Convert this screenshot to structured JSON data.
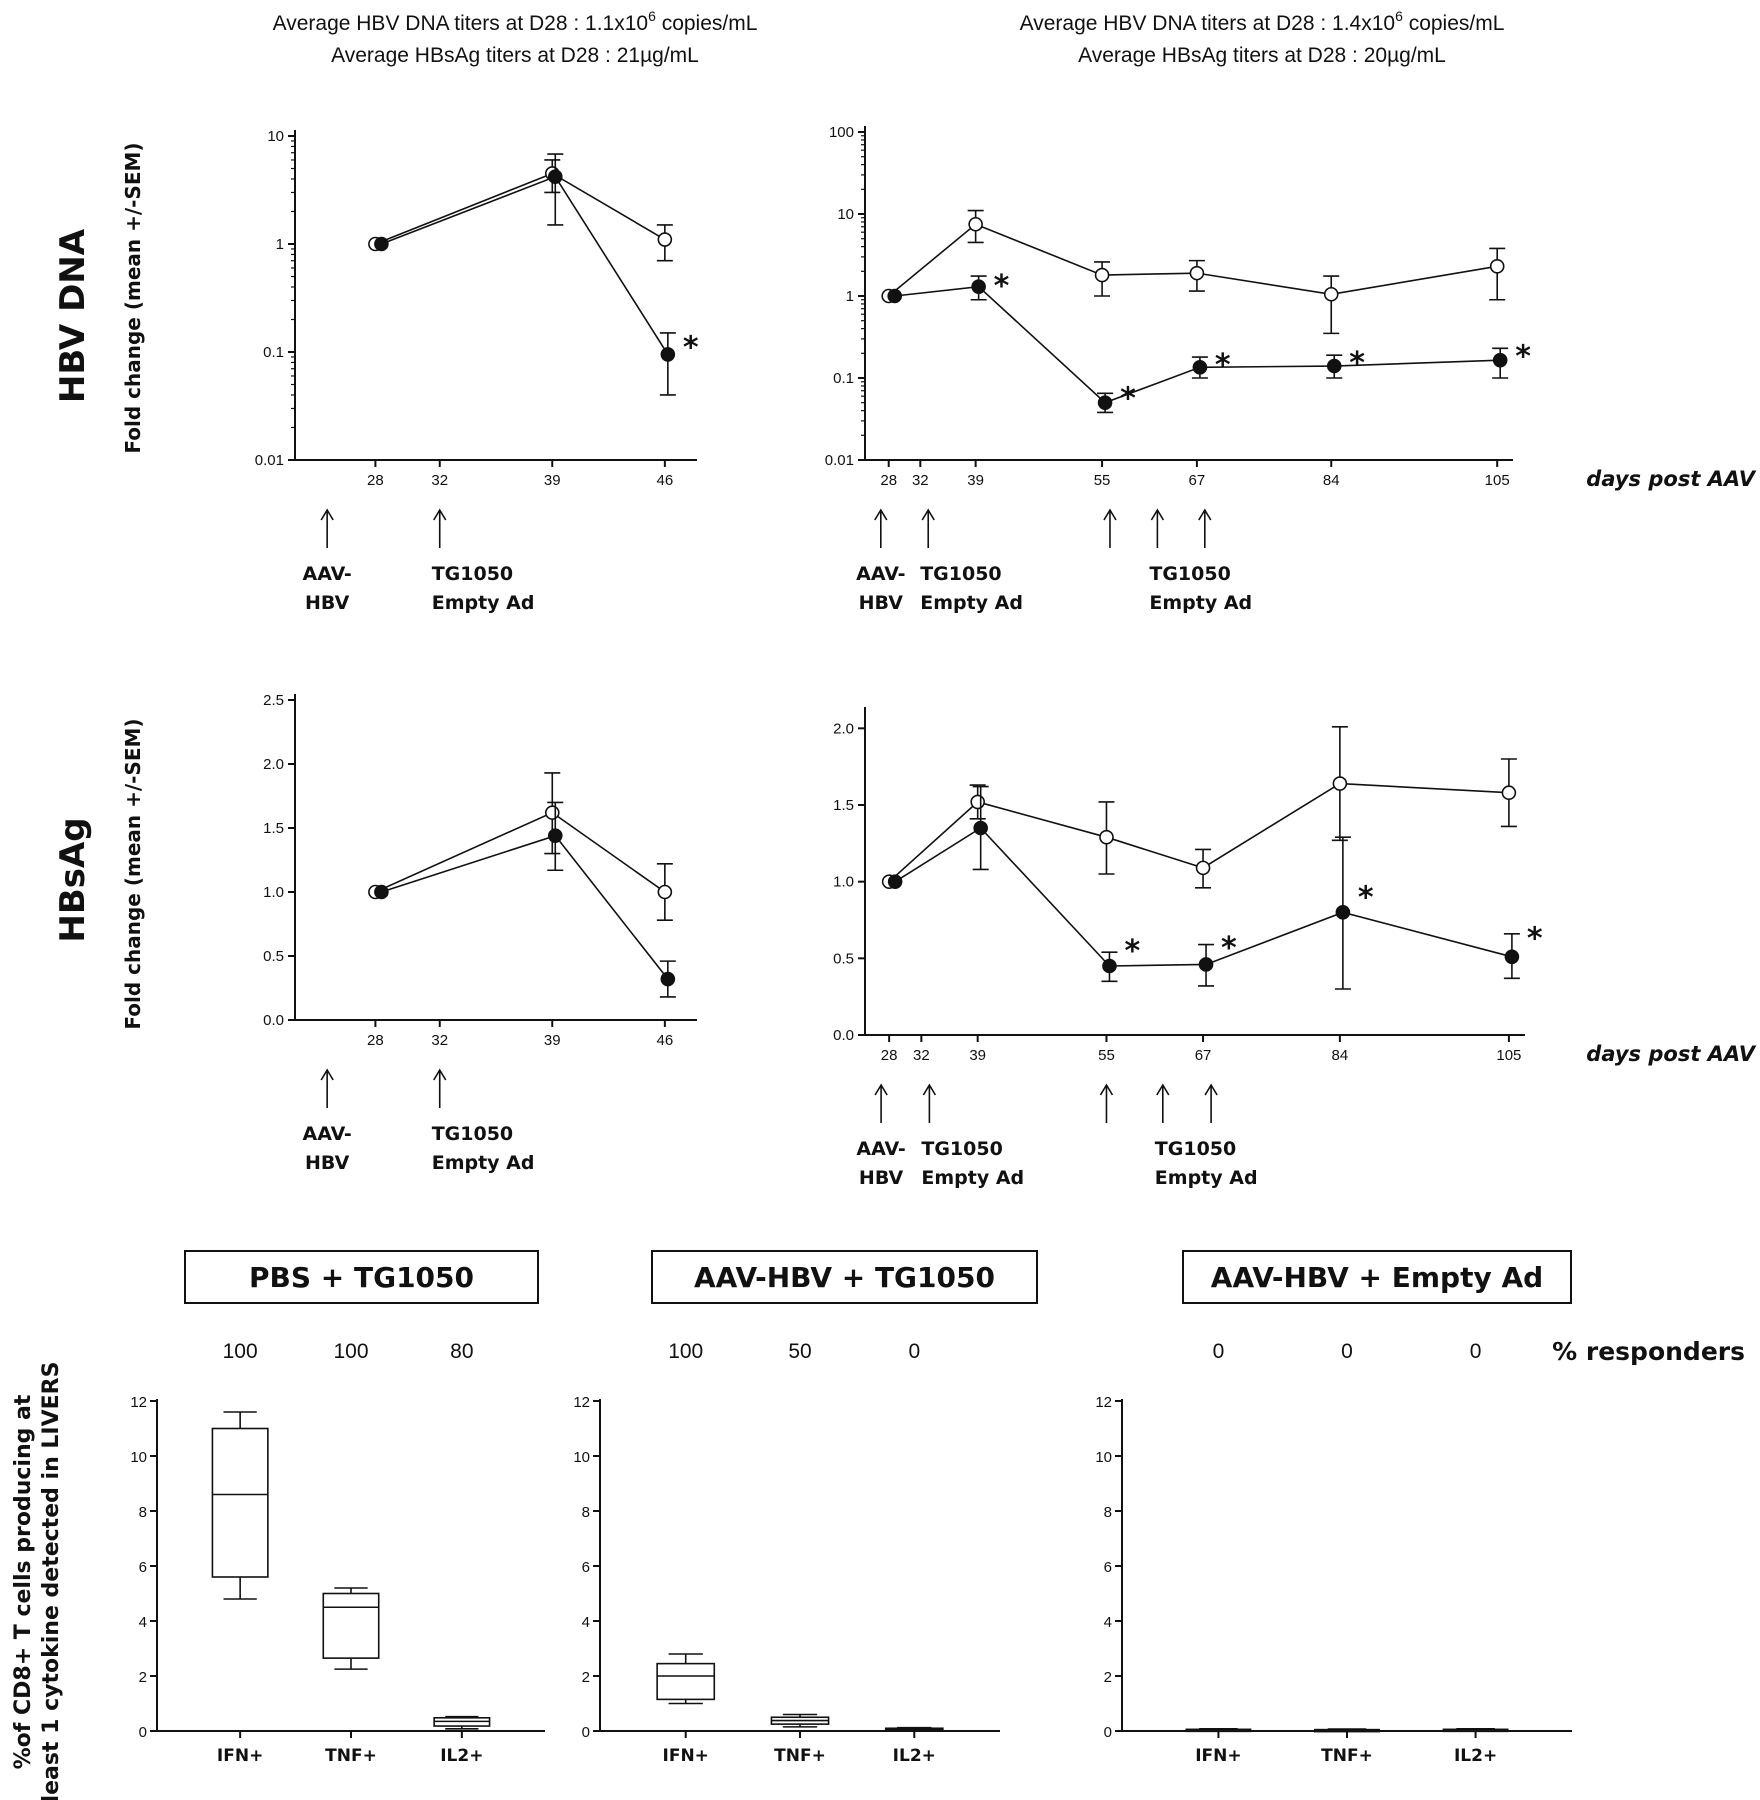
{
  "figure": {
    "headers": [
      {
        "line1": "Average HBV DNA titers at D28 : 1.1x10",
        "sup": "6",
        "tail": " copies/mL",
        "line2": "Average HBsAg titers at D28 : 21µg/mL"
      },
      {
        "line1": "Average HBV DNA titers at D28 : 1.4x10",
        "sup": "6",
        "tail": " copies/mL",
        "line2": "Average HBsAg titers at D28 : 20µg/mL"
      }
    ],
    "row_labels": [
      "HBV DNA",
      "HBsAg"
    ],
    "y_axis_label": "Fold change (mean +/-SEM)",
    "days_label": "days post AAV",
    "arrow_labels": {
      "aav_1": "AAV-",
      "aav_2": "HBV",
      "tg_1": "TG1050",
      "tg_2": "Empty Ad"
    },
    "box_y_label_1": "%of CD8+ T cells producing at",
    "box_y_label_2": "least 1 cytokine detected in LIVERS",
    "responders_label": "% responders",
    "colors": {
      "ink": "#111111",
      "open_marker": "#ffffff",
      "filled_marker": "#111111"
    }
  },
  "chart_data": [
    {
      "id": "dna_short",
      "type": "line",
      "yscale": "log",
      "ylim": [
        0.01,
        10
      ],
      "x_ticks": [
        28,
        32,
        39,
        46
      ],
      "y_ticks": [
        {
          "v": 0.01,
          "label": "0.01"
        },
        {
          "v": 0.1,
          "label": "0.1"
        },
        {
          "v": 1,
          "label": "1"
        },
        {
          "v": 10,
          "label": "10"
        }
      ],
      "series": [
        {
          "marker": "open",
          "x": [
            28,
            39,
            46
          ],
          "y": [
            1.0,
            4.5,
            1.1
          ],
          "err_hi": [
            1.0,
            6.0,
            1.5
          ],
          "err_lo": [
            1.0,
            3.0,
            0.7
          ]
        },
        {
          "marker": "filled",
          "x": [
            28,
            39,
            46
          ],
          "y": [
            1.0,
            4.2,
            0.095
          ],
          "err_hi": [
            1.0,
            6.8,
            0.15
          ],
          "err_lo": [
            1.0,
            1.5,
            0.04
          ]
        }
      ],
      "stars": [
        {
          "x": 46,
          "y": 0.13,
          "label": "*"
        }
      ],
      "arrows": [
        {
          "x": 25,
          "text1": "AAV-",
          "text2": "HBV"
        },
        {
          "x": 32,
          "text1": "TG1050",
          "text2": "Empty Ad"
        }
      ]
    },
    {
      "id": "dna_long",
      "type": "line",
      "yscale": "log",
      "ylim": [
        0.01,
        100
      ],
      "x_ticks": [
        28,
        32,
        39,
        55,
        67,
        84,
        105
      ],
      "y_ticks": [
        {
          "v": 0.01,
          "label": "0.01"
        },
        {
          "v": 0.1,
          "label": "0.1"
        },
        {
          "v": 1,
          "label": "1"
        },
        {
          "v": 10,
          "label": "10"
        },
        {
          "v": 100,
          "label": "100"
        }
      ],
      "series": [
        {
          "marker": "open",
          "x": [
            28,
            39,
            55,
            67,
            84,
            105
          ],
          "y": [
            1.0,
            7.5,
            1.8,
            1.9,
            1.05,
            2.3
          ],
          "err_hi": [
            1.0,
            11,
            2.6,
            2.7,
            1.75,
            3.8
          ],
          "err_lo": [
            1.0,
            4.5,
            1.0,
            1.15,
            0.35,
            0.9
          ]
        },
        {
          "marker": "filled",
          "x": [
            28,
            39,
            55,
            67,
            84,
            105
          ],
          "y": [
            1.0,
            1.3,
            0.05,
            0.135,
            0.14,
            0.165
          ],
          "err_hi": [
            1.0,
            1.75,
            0.065,
            0.18,
            0.19,
            0.23
          ],
          "err_lo": [
            1.0,
            0.9,
            0.038,
            0.1,
            0.1,
            0.1
          ]
        }
      ],
      "stars": [
        {
          "x": 39,
          "y": 1.65,
          "label": "*"
        },
        {
          "x": 55,
          "y": 0.07,
          "label": "*"
        },
        {
          "x": 67,
          "y": 0.18,
          "label": "*"
        },
        {
          "x": 84,
          "y": 0.19,
          "label": "*"
        },
        {
          "x": 105,
          "y": 0.23,
          "label": "*"
        }
      ],
      "arrows": [
        {
          "x": 27,
          "text1": "AAV-",
          "text2": "HBV"
        },
        {
          "x": 33,
          "text1": "TG1050",
          "text2": "Empty Ad"
        },
        {
          "x": 56,
          "text1": "",
          "text2": ""
        },
        {
          "x": 62,
          "text1": "TG1050",
          "text2": "Empty Ad"
        },
        {
          "x": 68,
          "text1": "",
          "text2": ""
        }
      ]
    },
    {
      "id": "hbsag_short",
      "type": "line",
      "yscale": "linear",
      "ylim": [
        0,
        2.5
      ],
      "x_ticks": [
        28,
        32,
        39,
        46
      ],
      "y_ticks": [
        {
          "v": 0,
          "label": "0.0"
        },
        {
          "v": 0.5,
          "label": "0.5"
        },
        {
          "v": 1,
          "label": "1.0"
        },
        {
          "v": 1.5,
          "label": "1.5"
        },
        {
          "v": 2,
          "label": "2.0"
        },
        {
          "v": 2.5,
          "label": "2.5"
        }
      ],
      "series": [
        {
          "marker": "open",
          "x": [
            28,
            39,
            46
          ],
          "y": [
            1.0,
            1.62,
            1.0
          ],
          "err_hi": [
            1.0,
            1.93,
            1.22
          ],
          "err_lo": [
            1.0,
            1.3,
            0.78
          ]
        },
        {
          "marker": "filled",
          "x": [
            28,
            39,
            46
          ],
          "y": [
            1.0,
            1.44,
            0.32
          ],
          "err_hi": [
            1.0,
            1.7,
            0.46
          ],
          "err_lo": [
            1.0,
            1.17,
            0.18
          ]
        }
      ],
      "stars": [],
      "arrows": [
        {
          "x": 25,
          "text1": "AAV-",
          "text2": "HBV"
        },
        {
          "x": 32,
          "text1": "TG1050",
          "text2": "Empty Ad"
        }
      ]
    },
    {
      "id": "hbsag_long",
      "type": "line",
      "yscale": "linear",
      "ylim": [
        0,
        2.1
      ],
      "x_ticks": [
        28,
        32,
        39,
        55,
        67,
        84,
        105
      ],
      "y_ticks": [
        {
          "v": 0,
          "label": "0.0"
        },
        {
          "v": 0.5,
          "label": "0.5"
        },
        {
          "v": 1,
          "label": "1.0"
        },
        {
          "v": 1.5,
          "label": "1.5"
        },
        {
          "v": 2,
          "label": "2.0"
        }
      ],
      "series": [
        {
          "marker": "open",
          "x": [
            28,
            39,
            55,
            67,
            84,
            105
          ],
          "y": [
            1.0,
            1.52,
            1.29,
            1.09,
            1.64,
            1.58
          ],
          "err_hi": [
            1.0,
            1.63,
            1.52,
            1.21,
            2.01,
            1.8
          ],
          "err_lo": [
            1.0,
            1.41,
            1.05,
            0.96,
            1.27,
            1.36
          ]
        },
        {
          "marker": "filled",
          "x": [
            28,
            39,
            55,
            67,
            84,
            105
          ],
          "y": [
            1.0,
            1.35,
            0.45,
            0.46,
            0.8,
            0.51
          ],
          "err_hi": [
            1.0,
            1.62,
            0.54,
            0.59,
            1.29,
            0.66
          ],
          "err_lo": [
            1.0,
            1.08,
            0.35,
            0.32,
            0.3,
            0.37
          ]
        }
      ],
      "stars": [
        {
          "x": 55,
          "y": 0.6,
          "label": "*"
        },
        {
          "x": 67,
          "y": 0.62,
          "label": "*"
        },
        {
          "x": 84,
          "y": 0.95,
          "label": "*"
        },
        {
          "x": 105,
          "y": 0.68,
          "label": "*"
        }
      ],
      "arrows": [
        {
          "x": 27,
          "text1": "AAV-",
          "text2": "HBV"
        },
        {
          "x": 33,
          "text1": "TG1050",
          "text2": "Empty Ad"
        },
        {
          "x": 55,
          "text1": "",
          "text2": ""
        },
        {
          "x": 62,
          "text1": "TG1050",
          "text2": "Empty Ad"
        },
        {
          "x": 68,
          "text1": "",
          "text2": ""
        }
      ]
    },
    {
      "id": "box_pbs_tg1050",
      "type": "box",
      "title": "PBS + TG1050",
      "ylim": [
        0,
        12
      ],
      "y_ticks": [
        0,
        2,
        4,
        6,
        8,
        10,
        12
      ],
      "categories": [
        "IFN+",
        "TNF+",
        "IL2+"
      ],
      "responders": [
        "100",
        "100",
        "80"
      ],
      "boxes": [
        {
          "min": 4.8,
          "q1": 5.6,
          "median": 8.6,
          "q3": 11.0,
          "max": 11.6
        },
        {
          "min": 2.25,
          "q1": 2.65,
          "median": 4.5,
          "q3": 5.0,
          "max": 5.2
        },
        {
          "min": 0.08,
          "q1": 0.18,
          "median": 0.35,
          "q3": 0.48,
          "max": 0.52
        }
      ]
    },
    {
      "id": "box_aav_tg1050",
      "type": "box",
      "title": "AAV-HBV + TG1050",
      "ylim": [
        0,
        12
      ],
      "y_ticks": [
        0,
        2,
        4,
        6,
        8,
        10,
        12
      ],
      "categories": [
        "IFN+",
        "TNF+",
        "IL2+"
      ],
      "responders": [
        "100",
        "50",
        "0"
      ],
      "boxes": [
        {
          "min": 1.0,
          "q1": 1.15,
          "median": 2.0,
          "q3": 2.45,
          "max": 2.8
        },
        {
          "min": 0.15,
          "q1": 0.25,
          "median": 0.38,
          "q3": 0.5,
          "max": 0.6
        },
        {
          "min": 0.03,
          "q1": 0.05,
          "median": 0.08,
          "q3": 0.1,
          "max": 0.12
        }
      ]
    },
    {
      "id": "box_aav_empty",
      "type": "box",
      "title": "AAV-HBV + Empty Ad",
      "ylim": [
        0,
        12
      ],
      "y_ticks": [
        0,
        2,
        4,
        6,
        8,
        10,
        12
      ],
      "categories": [
        "IFN+",
        "TNF+",
        "IL2+"
      ],
      "responders": [
        "0",
        "0",
        "0"
      ],
      "boxes": [
        {
          "min": 0.0,
          "q1": 0.02,
          "median": 0.04,
          "q3": 0.06,
          "max": 0.08
        },
        {
          "min": 0.0,
          "q1": 0.02,
          "median": 0.03,
          "q3": 0.05,
          "max": 0.07
        },
        {
          "min": 0.0,
          "q1": 0.02,
          "median": 0.04,
          "q3": 0.06,
          "max": 0.08
        }
      ]
    }
  ]
}
